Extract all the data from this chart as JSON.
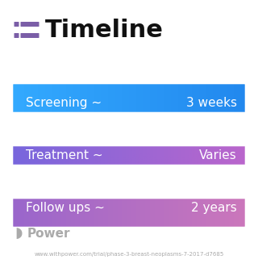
{
  "title": "Timeline",
  "title_icon_color": "#7B5EA7",
  "background_color": "#ffffff",
  "rows": [
    {
      "label": "Screening ~",
      "value": "3 weeks",
      "color_left": "#33AAFF",
      "color_right": "#2288EE"
    },
    {
      "label": "Treatment ~",
      "value": "Varies",
      "color_left": "#7766DD",
      "color_right": "#BB66CC"
    },
    {
      "label": "Follow ups ~",
      "value": "2 years",
      "color_left": "#9966CC",
      "color_right": "#CC77BB"
    }
  ],
  "footer_logo_color": "#aaaaaa",
  "footer_text": "Power",
  "footer_url": "www.withpower.com/trial/phase-3-breast-neoplasms-7-2017-d7685",
  "footer_color": "#aaaaaa",
  "fig_width": 3.2,
  "fig_height": 3.27,
  "dpi": 100
}
